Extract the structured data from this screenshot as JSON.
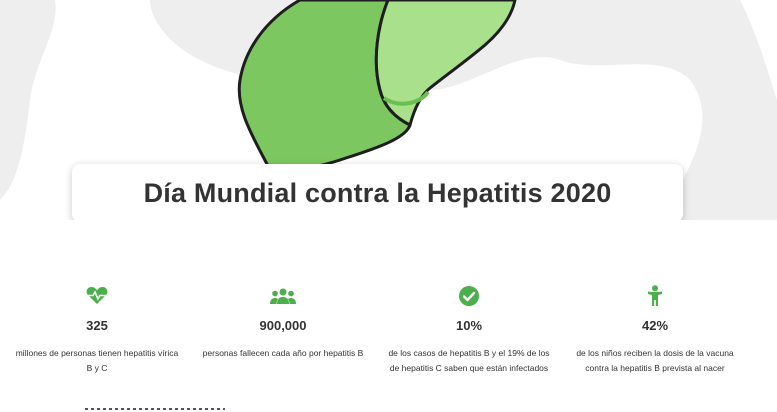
{
  "title": "Día Mundial contra la Hepatitis 2020",
  "colors": {
    "accent": "#4cae4c",
    "liver_dark": "#7dc760",
    "liver_light": "#a8e08c",
    "background_shape": "#eeeeee",
    "text": "#333333"
  },
  "stats": [
    {
      "icon": "heartbeat-icon",
      "value": "325",
      "description": "millones de personas tienen hepatitis vírica B y C"
    },
    {
      "icon": "users-icon",
      "value": "900,000",
      "description": "personas fallecen cada año por hepatitis B"
    },
    {
      "icon": "check-circle-icon",
      "value": "10%",
      "description": "de los casos de hepatitis B y el 19% de los de hepatitis C saben que están infectados"
    },
    {
      "icon": "child-icon",
      "value": "42%",
      "description": "de los niños reciben la dosis de la vacuna contra la hepatitis B prevista al nacer"
    }
  ]
}
